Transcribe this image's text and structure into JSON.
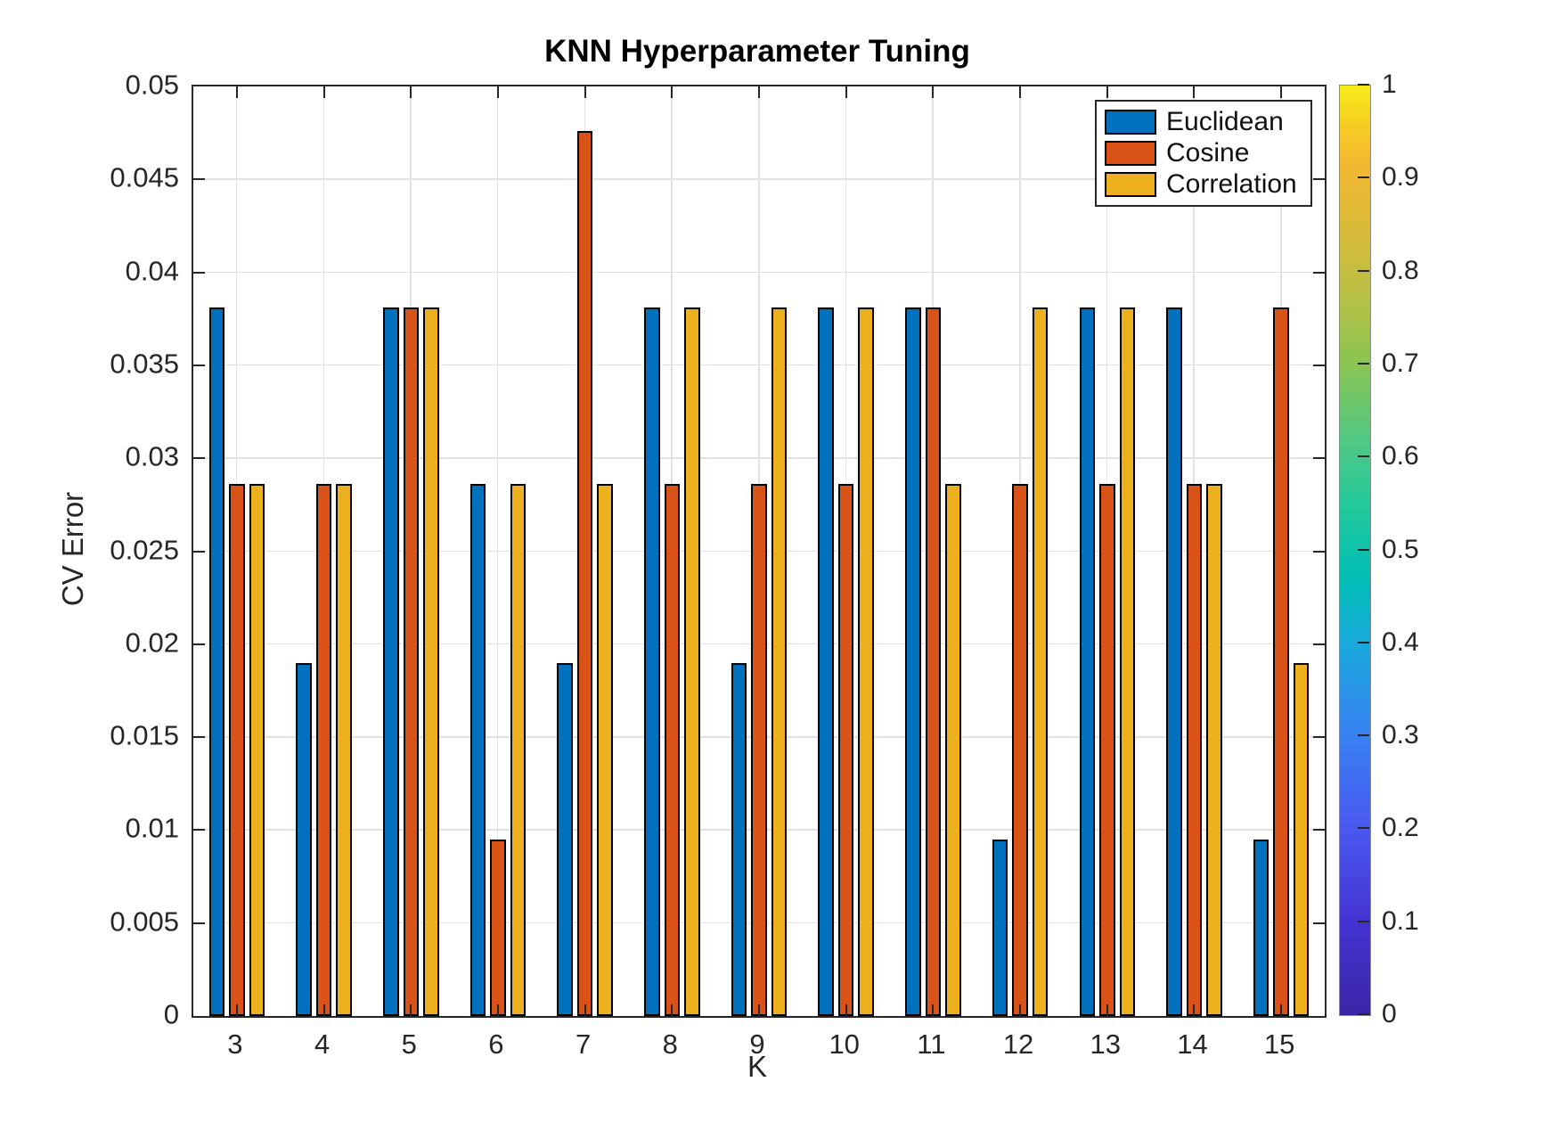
{
  "chart_data": {
    "type": "bar",
    "title": "KNN Hyperparameter Tuning",
    "xlabel": "K",
    "ylabel": "CV Error",
    "categories": [
      3,
      4,
      5,
      6,
      7,
      8,
      9,
      10,
      11,
      12,
      13,
      14,
      15
    ],
    "series": [
      {
        "name": "Euclidean",
        "color": "#0072BD",
        "values": [
          0.0381,
          0.019,
          0.0381,
          0.0286,
          0.019,
          0.0381,
          0.019,
          0.0381,
          0.0381,
          0.0095,
          0.0381,
          0.0381,
          0.0095
        ]
      },
      {
        "name": "Cosine",
        "color": "#D95319",
        "values": [
          0.0286,
          0.0286,
          0.0381,
          0.0095,
          0.0476,
          0.0286,
          0.0286,
          0.0286,
          0.0381,
          0.0286,
          0.0286,
          0.0286,
          0.0381
        ]
      },
      {
        "name": "Correlation",
        "color": "#EDB120",
        "values": [
          0.0286,
          0.0286,
          0.0381,
          0.0286,
          0.0286,
          0.0381,
          0.0381,
          0.0381,
          0.0286,
          0.0381,
          0.0381,
          0.0286,
          0.019
        ]
      }
    ],
    "ylim": [
      0,
      0.05
    ],
    "y_tick_labels": [
      "0",
      "0.005",
      "0.01",
      "0.015",
      "0.02",
      "0.025",
      "0.03",
      "0.035",
      "0.04",
      "0.045",
      "0.05"
    ],
    "grid": true,
    "legend_position": "top-right",
    "axis_color": "#262626",
    "grid_color": "#e2e2e2",
    "bar_edge_color": "#000000",
    "colorbar": {
      "min": 0,
      "max": 1,
      "tick_labels": [
        "0",
        "0.1",
        "0.2",
        "0.3",
        "0.4",
        "0.5",
        "0.6",
        "0.7",
        "0.8",
        "0.9",
        "1"
      ],
      "colormap": "parula",
      "gradient": [
        {
          "stop": 0,
          "color": "#3b26a6"
        },
        {
          "stop": 10,
          "color": "#4433d2"
        },
        {
          "stop": 20,
          "color": "#4a58f0"
        },
        {
          "stop": 30,
          "color": "#3980f2"
        },
        {
          "stop": 40,
          "color": "#18a9dd"
        },
        {
          "stop": 47,
          "color": "#00bdb4"
        },
        {
          "stop": 55,
          "color": "#25c99b"
        },
        {
          "stop": 62,
          "color": "#52c883"
        },
        {
          "stop": 70,
          "color": "#8ac553"
        },
        {
          "stop": 78,
          "color": "#bcbf43"
        },
        {
          "stop": 85,
          "color": "#dcba39"
        },
        {
          "stop": 92,
          "color": "#f4b82f"
        },
        {
          "stop": 97,
          "color": "#f6d51f"
        },
        {
          "stop": 100,
          "color": "#f8ec18"
        }
      ]
    }
  }
}
